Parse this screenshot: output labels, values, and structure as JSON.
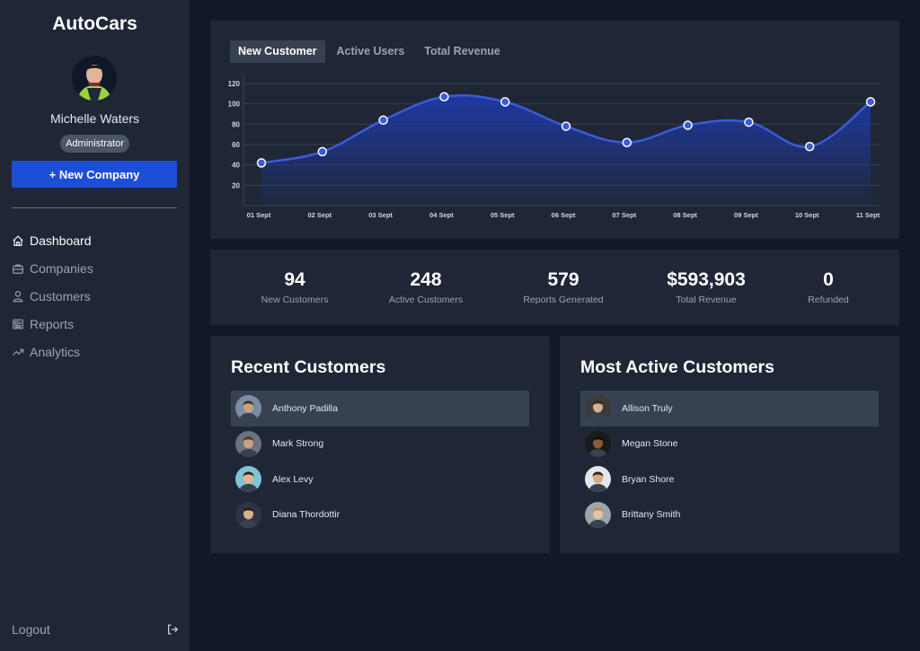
{
  "app": {
    "brand": "AutoCars"
  },
  "profile": {
    "name": "Michelle Waters",
    "role": "Administrator"
  },
  "sidebar": {
    "new_company_label": "+ New Company",
    "nav": [
      {
        "label": "Dashboard",
        "icon": "home-icon",
        "active": true
      },
      {
        "label": "Companies",
        "icon": "briefcase-icon",
        "active": false
      },
      {
        "label": "Customers",
        "icon": "user-icon",
        "active": false
      },
      {
        "label": "Reports",
        "icon": "newspaper-icon",
        "active": false
      },
      {
        "label": "Analytics",
        "icon": "trending-up-icon",
        "active": false
      }
    ],
    "logout_label": "Logout"
  },
  "chart_tabs": [
    {
      "label": "New Customer",
      "active": true
    },
    {
      "label": "Active Users",
      "active": false
    },
    {
      "label": "Total Revenue",
      "active": false
    }
  ],
  "chart_data": {
    "type": "area",
    "categories": [
      "01 Sept",
      "02 Sept",
      "03 Sept",
      "04 Sept",
      "05 Sept",
      "06 Sept",
      "07 Sept",
      "08 Sept",
      "09 Sept",
      "10 Sept",
      "11 Sept"
    ],
    "series": [
      {
        "values": [
          42,
          53,
          84,
          107,
          102,
          78,
          62,
          79,
          82,
          58,
          102
        ]
      }
    ],
    "yticks": [
      20,
      40,
      60,
      80,
      100,
      120
    ],
    "ylim": [
      0,
      120
    ],
    "grid": true,
    "line_color": "#3b5bdb",
    "fill_color": "#1e3aa8"
  },
  "stats": [
    {
      "value": "94",
      "label": "New Customers"
    },
    {
      "value": "248",
      "label": "Active Customers"
    },
    {
      "value": "579",
      "label": "Reports Generated"
    },
    {
      "value": "$593,903",
      "label": "Total Revenue"
    },
    {
      "value": "0",
      "label": "Refunded"
    }
  ],
  "recent_customers": {
    "title": "Recent Customers",
    "items": [
      {
        "name": "Anthony Padilla",
        "avatar_bg": "#7c8da3",
        "avatar_skin": "#c9a27e",
        "avatar_hair": "#3b2f2a"
      },
      {
        "name": "Mark Strong",
        "avatar_bg": "#6b7280",
        "avatar_skin": "#caa185",
        "avatar_hair": "#4a3b32"
      },
      {
        "name": "Alex Levy",
        "avatar_bg": "#7fc4d6",
        "avatar_skin": "#e0b58f",
        "avatar_hair": "#2b1f1a"
      },
      {
        "name": "Diana Thordottir",
        "avatar_bg": "#2f3440",
        "avatar_skin": "#d9b294",
        "avatar_hair": "#2a1d18"
      }
    ]
  },
  "active_customers": {
    "title": "Most Active Customers",
    "items": [
      {
        "name": "Allison Truly",
        "avatar_bg": "#3a3a3a",
        "avatar_skin": "#d8ae8f",
        "avatar_hair": "#3b2418"
      },
      {
        "name": "Megan Stone",
        "avatar_bg": "#1a1a1a",
        "avatar_skin": "#8a5a3c",
        "avatar_hair": "#120c09"
      },
      {
        "name": "Bryan Shore",
        "avatar_bg": "#e5e7eb",
        "avatar_skin": "#d7a886",
        "avatar_hair": "#2c1e18"
      },
      {
        "name": "Brittany Smith",
        "avatar_bg": "#9aa7a6",
        "avatar_skin": "#e3c2a6",
        "avatar_hair": "#b48a62"
      }
    ]
  }
}
